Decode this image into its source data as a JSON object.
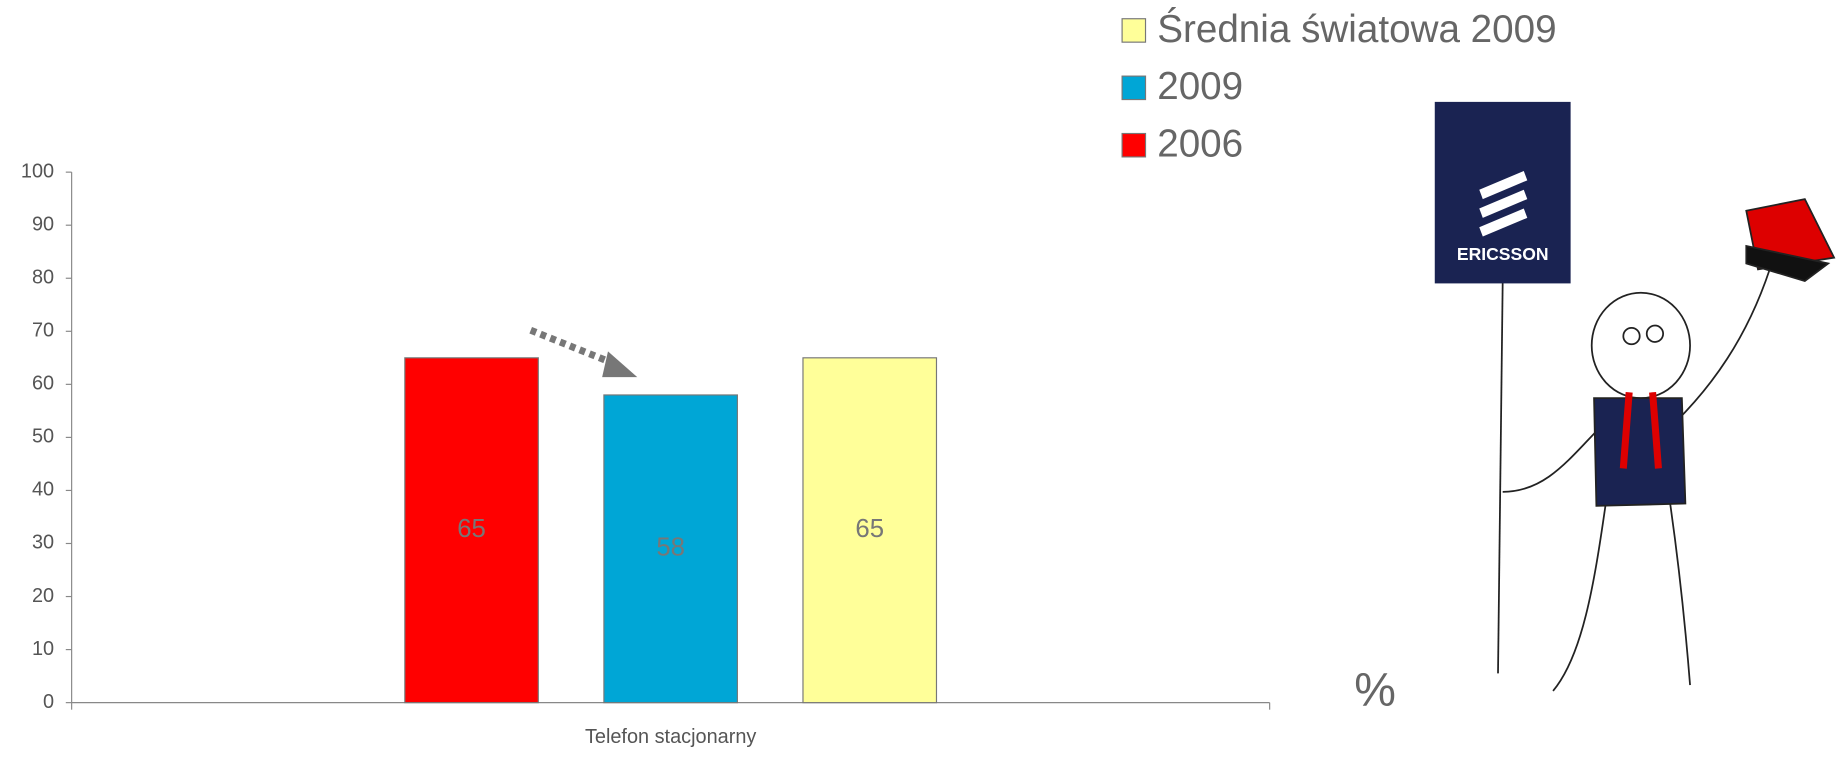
{
  "chart_data": {
    "type": "bar",
    "categories": [
      "Telefon stacjonarny"
    ],
    "series": [
      {
        "name": "2006",
        "color": "#ff0000",
        "values": [
          65
        ]
      },
      {
        "name": "2009",
        "color": "#00a6d6",
        "values": [
          58
        ]
      },
      {
        "name": "Średnia światowa 2009",
        "color": "#ffff99",
        "values": [
          65
        ]
      }
    ],
    "ylim": [
      0,
      100
    ],
    "yticks": [
      0,
      10,
      20,
      30,
      40,
      50,
      60,
      70,
      80,
      90,
      100
    ],
    "unit_label": "%",
    "logo_text": "ERICSSON"
  }
}
